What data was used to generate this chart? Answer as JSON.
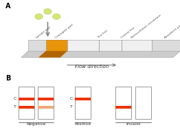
{
  "bg_color": "#ffffff",
  "title_a": "A",
  "title_b": "B",
  "flow_text": "Flow direction",
  "conjugate_color": "#e8940a",
  "conjugate_dark": "#b06500",
  "drop_color": "#d4e870",
  "drop_edge": "#a8b840",
  "strip_top": "#e8e8e8",
  "strip_side": "#cccccc",
  "strip_edge": "#aaaaaa",
  "nc_color": "#f0f0f0",
  "red_line": "#ee3300",
  "light_red": "#f0a878",
  "arrow_color": "#777777",
  "label_color": "#333333",
  "label_negative": "Negative",
  "label_positive": "Positive",
  "label_invalid": "Invalid",
  "label_C": "C",
  "label_T": "T",
  "section_labels": [
    "Sample pad",
    "Conjugate pad",
    "Test line",
    "Control line",
    "Nitrocellulose membrane",
    "Absorbent pad"
  ]
}
